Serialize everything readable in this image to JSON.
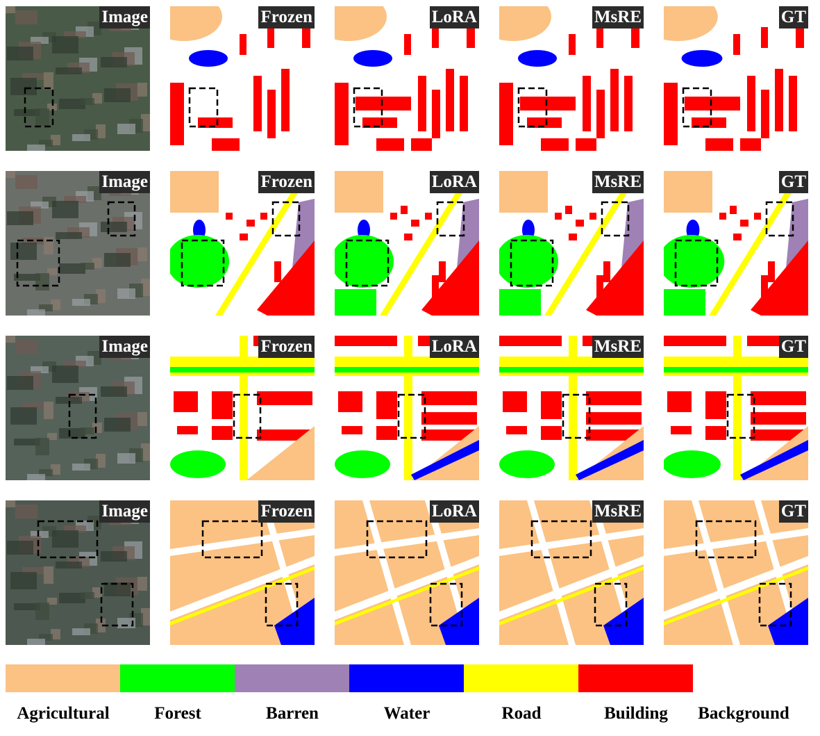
{
  "panels": [
    [
      "Image",
      "Frozen",
      "LoRA",
      "MsRE",
      "GT"
    ],
    [
      "Image",
      "Frozen",
      "LoRA",
      "MsRE",
      "GT"
    ],
    [
      "Image",
      "Frozen",
      "LoRA",
      "MsRE",
      "GT"
    ],
    [
      "Image",
      "Frozen",
      "LoRA",
      "MsRE",
      "GT"
    ]
  ],
  "legend": [
    {
      "label": "Agricultural",
      "color": "#fbc283"
    },
    {
      "label": "Forest",
      "color": "#00ff00"
    },
    {
      "label": "Barren",
      "color": "#9f81b6"
    },
    {
      "label": "Water",
      "color": "#0000ff"
    },
    {
      "label": "Road",
      "color": "#ffff00"
    },
    {
      "label": "Building",
      "color": "#ff0000"
    },
    {
      "label": "Background",
      "color": "#ffffff"
    }
  ]
}
